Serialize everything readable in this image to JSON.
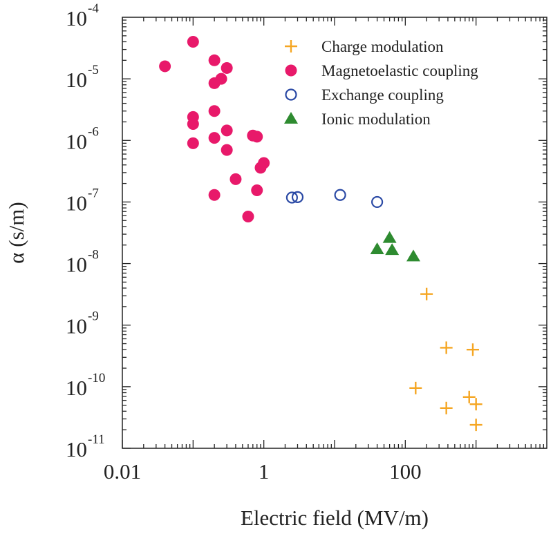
{
  "chart_data": {
    "type": "scatter",
    "xscale": "log",
    "yscale": "log",
    "xlim": [
      0.01,
      10000
    ],
    "ylim": [
      1e-11,
      0.0001
    ],
    "xlabel": "Electric field  (MV/m)",
    "ylabel": "α  (s/m)",
    "xticks": [
      {
        "value": 0.01,
        "label": "0.01"
      },
      {
        "value": 1,
        "label": "1"
      },
      {
        "value": 100,
        "label": "100"
      }
    ],
    "yticks": [
      {
        "value": 0.0001,
        "base": "10",
        "exp": "-4"
      },
      {
        "value": 1e-05,
        "base": "10",
        "exp": "-5"
      },
      {
        "value": 1e-06,
        "base": "10",
        "exp": "-6"
      },
      {
        "value": 1e-07,
        "base": "10",
        "exp": "-7"
      },
      {
        "value": 1e-08,
        "base": "10",
        "exp": "-8"
      },
      {
        "value": 1e-09,
        "base": "10",
        "exp": "-9"
      },
      {
        "value": 1e-10,
        "base": "10",
        "exp": "-10"
      },
      {
        "value": 1e-11,
        "base": "10",
        "exp": "-11"
      }
    ],
    "legend_position": "top-right",
    "series": [
      {
        "name": "Charge modulation",
        "marker": "plus",
        "color": "#f5a623",
        "points": [
          [
            200,
            3.2e-09
          ],
          [
            380,
            4.3e-10
          ],
          [
            900,
            4e-10
          ],
          [
            140,
            9.5e-11
          ],
          [
            380,
            4.5e-11
          ],
          [
            800,
            6.8e-11
          ],
          [
            1000,
            5.2e-11
          ],
          [
            1000,
            2.4e-11
          ]
        ]
      },
      {
        "name": "Magnetoelastic coupling",
        "marker": "filled-circle",
        "color": "#e8196a",
        "points": [
          [
            0.04,
            1.6e-05
          ],
          [
            0.1,
            4e-05
          ],
          [
            0.2,
            2e-05
          ],
          [
            0.3,
            1.5e-05
          ],
          [
            0.25,
            1e-05
          ],
          [
            0.2,
            8.5e-06
          ],
          [
            0.1,
            2.4e-06
          ],
          [
            0.1,
            1.85e-06
          ],
          [
            0.2,
            3e-06
          ],
          [
            0.1,
            9e-07
          ],
          [
            0.2,
            1.1e-06
          ],
          [
            0.3,
            1.45e-06
          ],
          [
            0.3,
            7e-07
          ],
          [
            0.7,
            1.2e-06
          ],
          [
            0.8,
            1.15e-06
          ],
          [
            1.0,
            4.3e-07
          ],
          [
            0.9,
            3.6e-07
          ],
          [
            0.4,
            2.35e-07
          ],
          [
            0.8,
            1.55e-07
          ],
          [
            0.2,
            1.3e-07
          ],
          [
            0.6,
            5.8e-08
          ]
        ]
      },
      {
        "name": "Exchange coupling",
        "marker": "open-circle",
        "color": "#2b4aa5",
        "points": [
          [
            2.5,
            1.18e-07
          ],
          [
            3.0,
            1.2e-07
          ],
          [
            12,
            1.3e-07
          ],
          [
            40,
            1e-07
          ]
        ]
      },
      {
        "name": "Ionic modulation",
        "marker": "triangle",
        "color": "#2e8b30",
        "points": [
          [
            40,
            1.7e-08
          ],
          [
            60,
            2.6e-08
          ],
          [
            65,
            1.65e-08
          ],
          [
            130,
            1.3e-08
          ]
        ]
      }
    ]
  }
}
